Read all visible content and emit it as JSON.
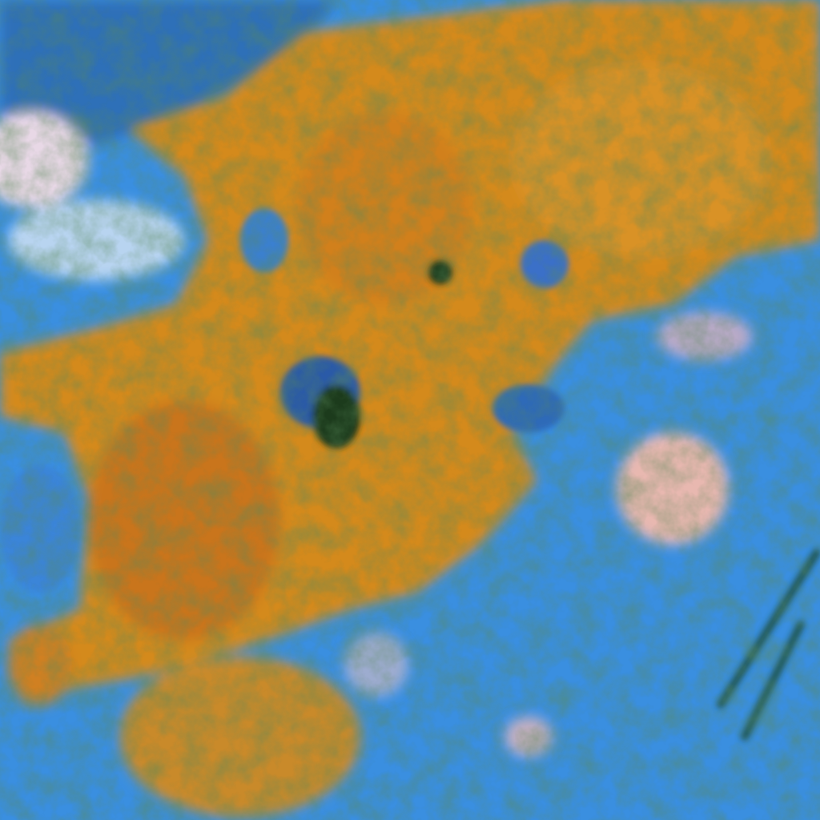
{
  "image": {
    "kind": "false-color satellite imagery",
    "colors": {
      "ocean": "#3a8fe0",
      "cloud_orange": "#d98a1c",
      "cloud_deep_orange": "#c86a14",
      "cloud_pink": "#e8b8b0",
      "dark_green": "#1f3a1a",
      "light_blue": "#8fc0ec"
    }
  }
}
